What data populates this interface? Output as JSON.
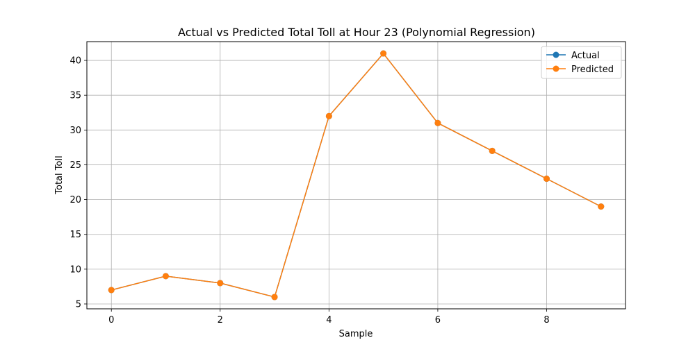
{
  "chart_data": {
    "type": "line",
    "title": "Actual vs Predicted Total Toll at Hour 23 (Polynomial Regression)",
    "xlabel": "Sample",
    "ylabel": "Total Toll",
    "x": [
      0,
      1,
      2,
      3,
      4,
      5,
      6,
      7,
      8,
      9
    ],
    "xlim": [
      -0.45,
      9.45
    ],
    "ylim": [
      4.3,
      42.7
    ],
    "xticks": [
      0,
      2,
      4,
      6,
      8
    ],
    "yticks": [
      5,
      10,
      15,
      20,
      25,
      30,
      35,
      40
    ],
    "grid": true,
    "legend_position": "top-right",
    "series": [
      {
        "name": "Actual",
        "values": [
          7,
          9,
          8,
          6,
          32,
          41,
          31,
          27,
          23,
          19
        ],
        "color": "#1f77b4",
        "marker": "circle"
      },
      {
        "name": "Predicted",
        "values": [
          7,
          9,
          8,
          6,
          32,
          41,
          31,
          27,
          23,
          19
        ],
        "color": "#ff7f0e",
        "marker": "circle"
      }
    ]
  }
}
